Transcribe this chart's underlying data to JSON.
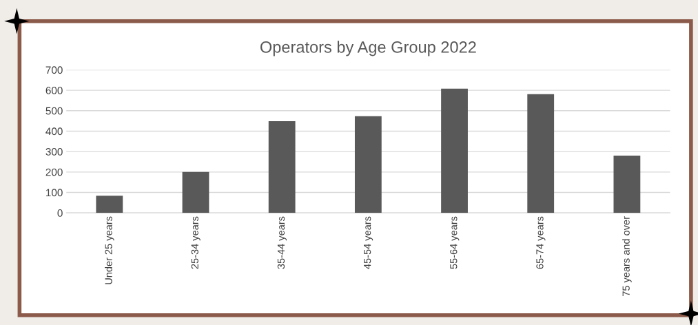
{
  "chart_data": {
    "type": "bar",
    "title": "Operators by Age Group 2022",
    "categories": [
      "Under 25 years",
      "25-34 years",
      "35-44 years",
      "45-54 years",
      "55-64 years",
      "65-74 years",
      "75 years and over"
    ],
    "values": [
      84,
      200,
      449,
      473,
      608,
      581,
      280
    ],
    "color": "#595959",
    "ylim": [
      0,
      700
    ],
    "yticks": [
      0,
      100,
      200,
      300,
      400,
      500,
      600,
      700
    ],
    "grid": "y",
    "legend": false
  }
}
